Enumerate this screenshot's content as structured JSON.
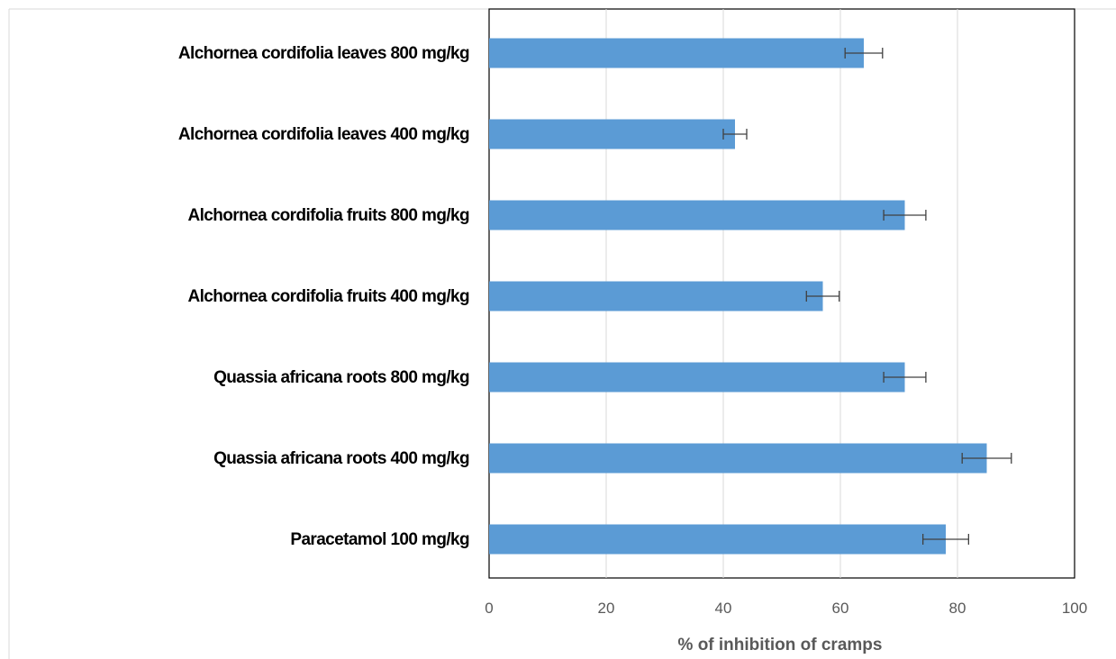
{
  "chart_data": {
    "type": "bar",
    "orientation": "horizontal",
    "categories": [
      "Alchornea cordifolia leaves 800 mg/kg",
      "Alchornea cordifolia leaves 400 mg/kg",
      "Alchornea cordifolia fruits 800 mg/kg",
      "Alchornea cordifolia fruits 400 mg/kg",
      "Quassia africana roots 800 mg/kg",
      "Quassia africana roots 400 mg/kg",
      "Paracetamol 100 mg/kg"
    ],
    "values": [
      64,
      42,
      71,
      57,
      71,
      85,
      78
    ],
    "errors": [
      3.2,
      2.0,
      3.6,
      2.8,
      3.6,
      4.2,
      3.9
    ],
    "xlabel": "% of inhibition of cramps",
    "ylabel": "",
    "xlim": [
      0,
      100
    ],
    "xticks": [
      "0",
      "20",
      "40",
      "60",
      "80",
      "100"
    ],
    "grid": true,
    "bar_color": "#5b9bd5",
    "error_bar_color": "#404040"
  }
}
